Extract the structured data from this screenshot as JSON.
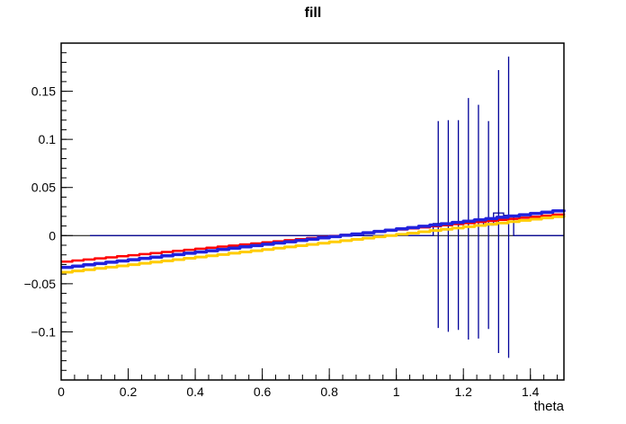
{
  "labels": {
    "title": "fill",
    "xlabel": "theta"
  },
  "chart_data": {
    "type": "line",
    "title": "fill",
    "xlabel": "theta",
    "ylabel": "",
    "xlim": [
      0,
      1.5
    ],
    "ylim": [
      -0.15,
      0.2
    ],
    "grid": false,
    "legend": "none",
    "frame_color": "#000000",
    "x_ticks": [
      {
        "v": 0,
        "label": "0"
      },
      {
        "v": 0.2,
        "label": "0.2"
      },
      {
        "v": 0.4,
        "label": "0.4"
      },
      {
        "v": 0.6,
        "label": "0.6"
      },
      {
        "v": 0.8,
        "label": "0.8"
      },
      {
        "v": 1,
        "label": "1"
      },
      {
        "v": 1.2,
        "label": "1.2"
      },
      {
        "v": 1.4,
        "label": "1.4"
      }
    ],
    "x_minor_step": 0.04,
    "y_ticks": [
      {
        "v": -0.1,
        "label": "−0.1"
      },
      {
        "v": -0.05,
        "label": "−0.05"
      },
      {
        "v": 0,
        "label": "0"
      },
      {
        "v": 0.05,
        "label": "0.05"
      },
      {
        "v": 0.1,
        "label": "0.1"
      },
      {
        "v": 0.15,
        "label": "0.15"
      }
    ],
    "y_minor_step": 0.01,
    "zero_line": {
      "y": 0,
      "color": "#000000"
    },
    "series": [
      {
        "name": "line-red",
        "color": "#ff0000",
        "width": 2.5,
        "x": [
          0,
          1.5
        ],
        "y": [
          -0.027,
          0.023
        ]
      },
      {
        "name": "line-yellow",
        "color": "#ffcc00",
        "width": 3.0,
        "x": [
          0,
          1.5
        ],
        "y": [
          -0.038,
          0.021
        ]
      },
      {
        "name": "line-blue",
        "color": "#2222dd",
        "width": 3.5,
        "x": [
          0,
          1.5
        ],
        "y": [
          -0.033,
          0.027
        ]
      }
    ],
    "histogram": {
      "name": "hist-navy",
      "color": "#000099",
      "baseline_start_x": 0.086,
      "bins": [
        {
          "x1": 1.11,
          "x2": 1.14,
          "y": 0.0125
        },
        {
          "x1": 1.14,
          "x2": 1.17,
          "y": 0.013
        },
        {
          "x1": 1.17,
          "x2": 1.2,
          "y": 0.014
        },
        {
          "x1": 1.2,
          "x2": 1.23,
          "y": 0.0155
        },
        {
          "x1": 1.23,
          "x2": 1.26,
          "y": 0.0165
        },
        {
          "x1": 1.26,
          "x2": 1.29,
          "y": 0.011
        },
        {
          "x1": 1.29,
          "x2": 1.32,
          "y": 0.0235
        },
        {
          "x1": 1.32,
          "x2": 1.35,
          "y": 0.021
        }
      ],
      "error_bars": [
        {
          "x": 1.125,
          "low": -0.096,
          "high": 0.119
        },
        {
          "x": 1.155,
          "low": -0.1,
          "high": 0.12
        },
        {
          "x": 1.185,
          "low": -0.098,
          "high": 0.12
        },
        {
          "x": 1.215,
          "low": -0.108,
          "high": 0.143
        },
        {
          "x": 1.245,
          "low": -0.107,
          "high": 0.136
        },
        {
          "x": 1.275,
          "low": -0.097,
          "high": 0.119
        },
        {
          "x": 1.305,
          "low": -0.122,
          "high": 0.172
        },
        {
          "x": 1.335,
          "low": -0.127,
          "high": 0.186
        }
      ]
    }
  }
}
